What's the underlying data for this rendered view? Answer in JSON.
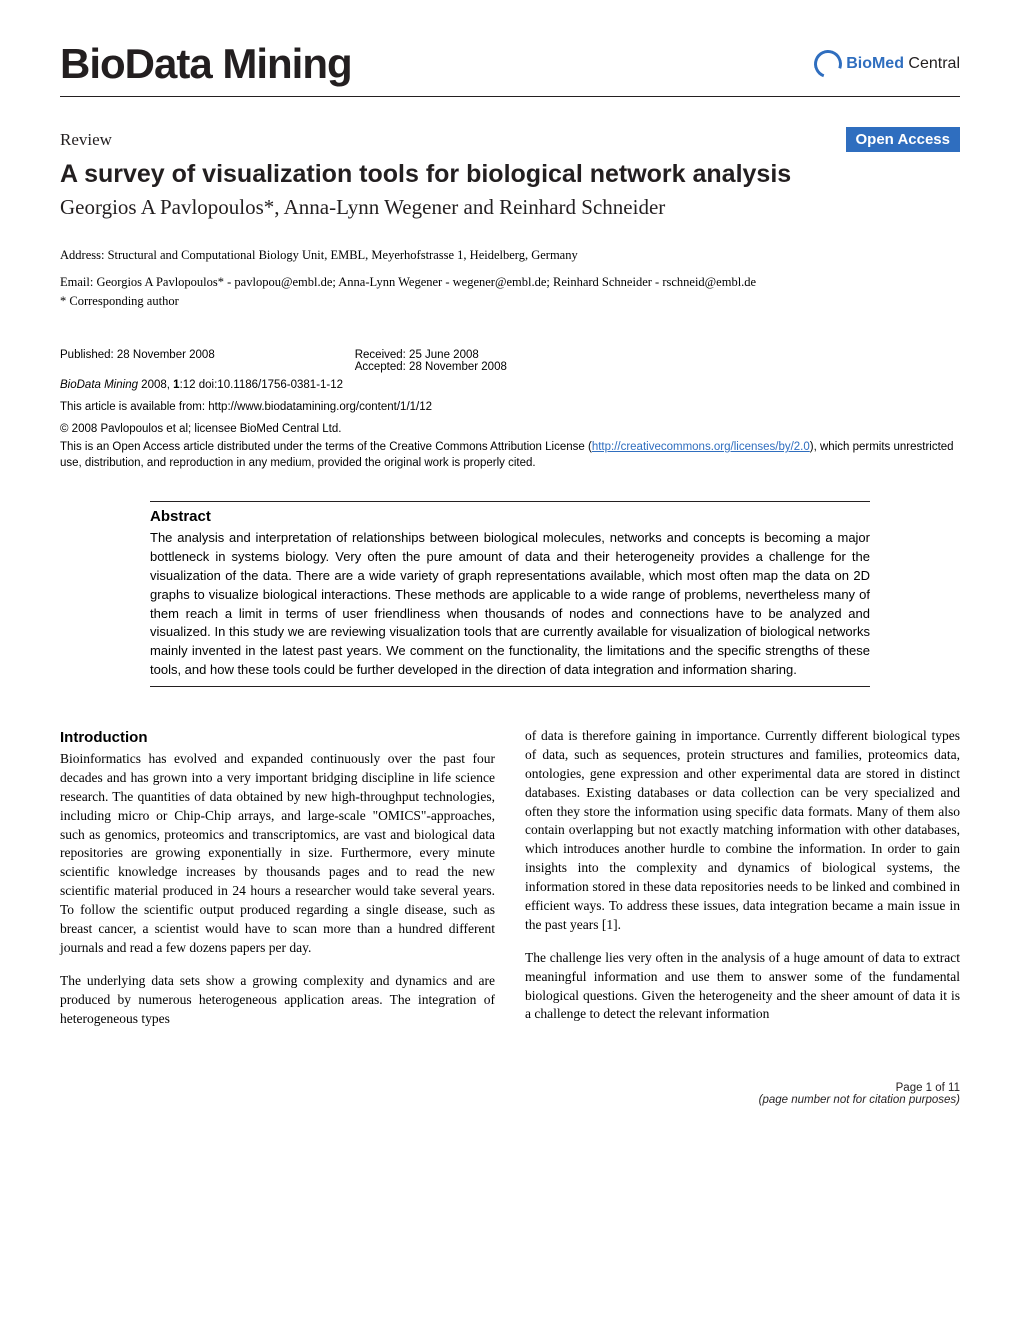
{
  "header": {
    "journal_title": "BioData Mining",
    "logo_biomed": "BioMed",
    "logo_central": " Central"
  },
  "article": {
    "review_label": "Review",
    "open_access_label": "Open Access",
    "title": "A survey of visualization tools for biological network analysis",
    "authors": "Georgios A Pavlopoulos*, Anna-Lynn Wegener and Reinhard Schneider",
    "address": "Address: Structural and Computational Biology Unit, EMBL, Meyerhofstrasse 1, Heidelberg, Germany",
    "email_line": "Email: Georgios A Pavlopoulos* - pavlopou@embl.de; Anna-Lynn Wegener - wegener@embl.de; Reinhard Schneider - rschneid@embl.de",
    "corresponding": "* Corresponding author"
  },
  "publication": {
    "published": "Published: 28 November 2008",
    "received": "Received: 25 June 2008",
    "accepted": "Accepted: 28 November 2008",
    "journal_cite": "BioData Mining",
    "year_vol": " 2008, ",
    "volume": "1",
    "issue_page": ":12",
    "doi": "    doi:10.1186/1756-0381-1-12",
    "available_from": "This article is available from: http://www.biodatamining.org/content/1/1/12",
    "copyright": "© 2008 Pavlopoulos et al; licensee BioMed Central Ltd.",
    "license_text_1": "This is an Open Access article distributed under the terms of the Creative Commons Attribution License (",
    "license_link": "http://creativecommons.org/licenses/by/2.0",
    "license_text_2": "), which permits unrestricted use, distribution, and reproduction in any medium, provided the original work is properly cited."
  },
  "abstract": {
    "heading": "Abstract",
    "text": "The analysis and interpretation of relationships between biological molecules, networks and concepts is becoming a major bottleneck in systems biology. Very often the pure amount of data and their heterogeneity provides a challenge for the visualization of the data. There are a wide variety of graph representations available, which most often map the data on 2D graphs to visualize biological interactions. These methods are applicable to a wide range of problems, nevertheless many of them reach a limit in terms of user friendliness when thousands of nodes and connections have to be analyzed and visualized. In this study we are reviewing visualization tools that are currently available for visualization of biological networks mainly invented in the latest past years. We comment on the functionality, the limitations and the specific strengths of these tools, and how these tools could be further developed in the direction of data integration and information sharing."
  },
  "body": {
    "intro_heading": "Introduction",
    "col1_p1": "Bioinformatics has evolved and expanded continuously over the past four decades and has grown into a very important bridging discipline in life science research. The quantities of data obtained by new high-throughput technologies, including micro or Chip-Chip arrays, and large-scale \"OMICS\"-approaches, such as genomics, proteomics and transcriptomics, are vast and biological data repositories are growing exponentially in size. Furthermore, every minute scientific knowledge increases by thousands pages and to read the new scientific material produced in 24 hours a researcher would take several years. To follow the scientific output produced regarding a single disease, such as breast cancer, a scientist would have to scan more than a hundred different journals and read a few dozens papers per day.",
    "col1_p2": "The underlying data sets show a growing complexity and dynamics and are produced by numerous heterogeneous application areas. The integration of heterogeneous types",
    "col2_p1": "of data is therefore gaining in importance. Currently different biological types of data, such as sequences, protein structures and families, proteomics data, ontologies, gene expression and other experimental data are stored in distinct databases. Existing databases or data collection can be very specialized and often they store the information using specific data formats. Many of them also contain overlapping but not exactly matching information with other databases, which introduces another hurdle to combine the information. In order to gain insights into the complexity and dynamics of biological systems, the information stored in these data repositories needs to be linked and combined in efficient ways. To address these issues, data integration became a main issue in the past years [1].",
    "col2_p2": "The challenge lies very often in the analysis of a huge amount of data to extract meaningful information and use them to answer some of the fundamental biological questions. Given the heterogeneity and the sheer amount of data it is a challenge to detect the relevant information"
  },
  "footer": {
    "page_num": "Page 1 of 11",
    "citation_note": "(page number not for citation purposes)"
  },
  "colors": {
    "brand_blue": "#2f6ebf",
    "text_black": "#231f20",
    "background": "#ffffff"
  }
}
